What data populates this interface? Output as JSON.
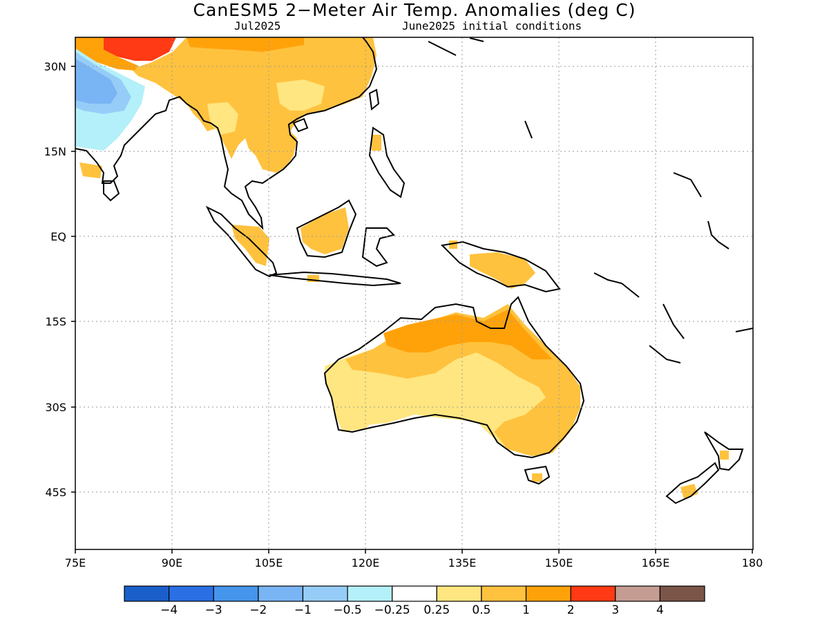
{
  "map": {
    "title": "CanESM5 2−Meter Air Temp. Anomalies (deg C)",
    "month": "Jul2025",
    "init": "June2025 initial conditions"
  },
  "axes": {
    "lon_labels": [
      "75E",
      "90E",
      "105E",
      "120E",
      "135E",
      "150E",
      "165E",
      "180"
    ],
    "lat_labels": [
      "30N",
      "15N",
      "EQ",
      "15S",
      "30S",
      "45S"
    ]
  },
  "colorbar": {
    "colors": [
      "#1a5fc9",
      "#2a6fe4",
      "#4595ec",
      "#79b4f4",
      "#96cdf8",
      "#b4f0f9",
      "#ffffff",
      "#ffe680",
      "#ffc23e",
      "#ffa20a",
      "#ff3a14",
      "#c59c92",
      "#7a5548"
    ],
    "labels": [
      "−4",
      "−3",
      "−2",
      "−1",
      "−0.5",
      "−0.25",
      "0.25",
      "0.5",
      "1",
      "2",
      "3",
      "4"
    ]
  },
  "palette": {
    "warm_light": "#ffe680",
    "warm_mid": "#ffc23e",
    "warm_strong": "#ffa20a",
    "hot": "#ff3a14",
    "cool_light": "#b4f0f9",
    "cool_mid": "#96cdf8",
    "cool_strong": "#79b4f4"
  }
}
